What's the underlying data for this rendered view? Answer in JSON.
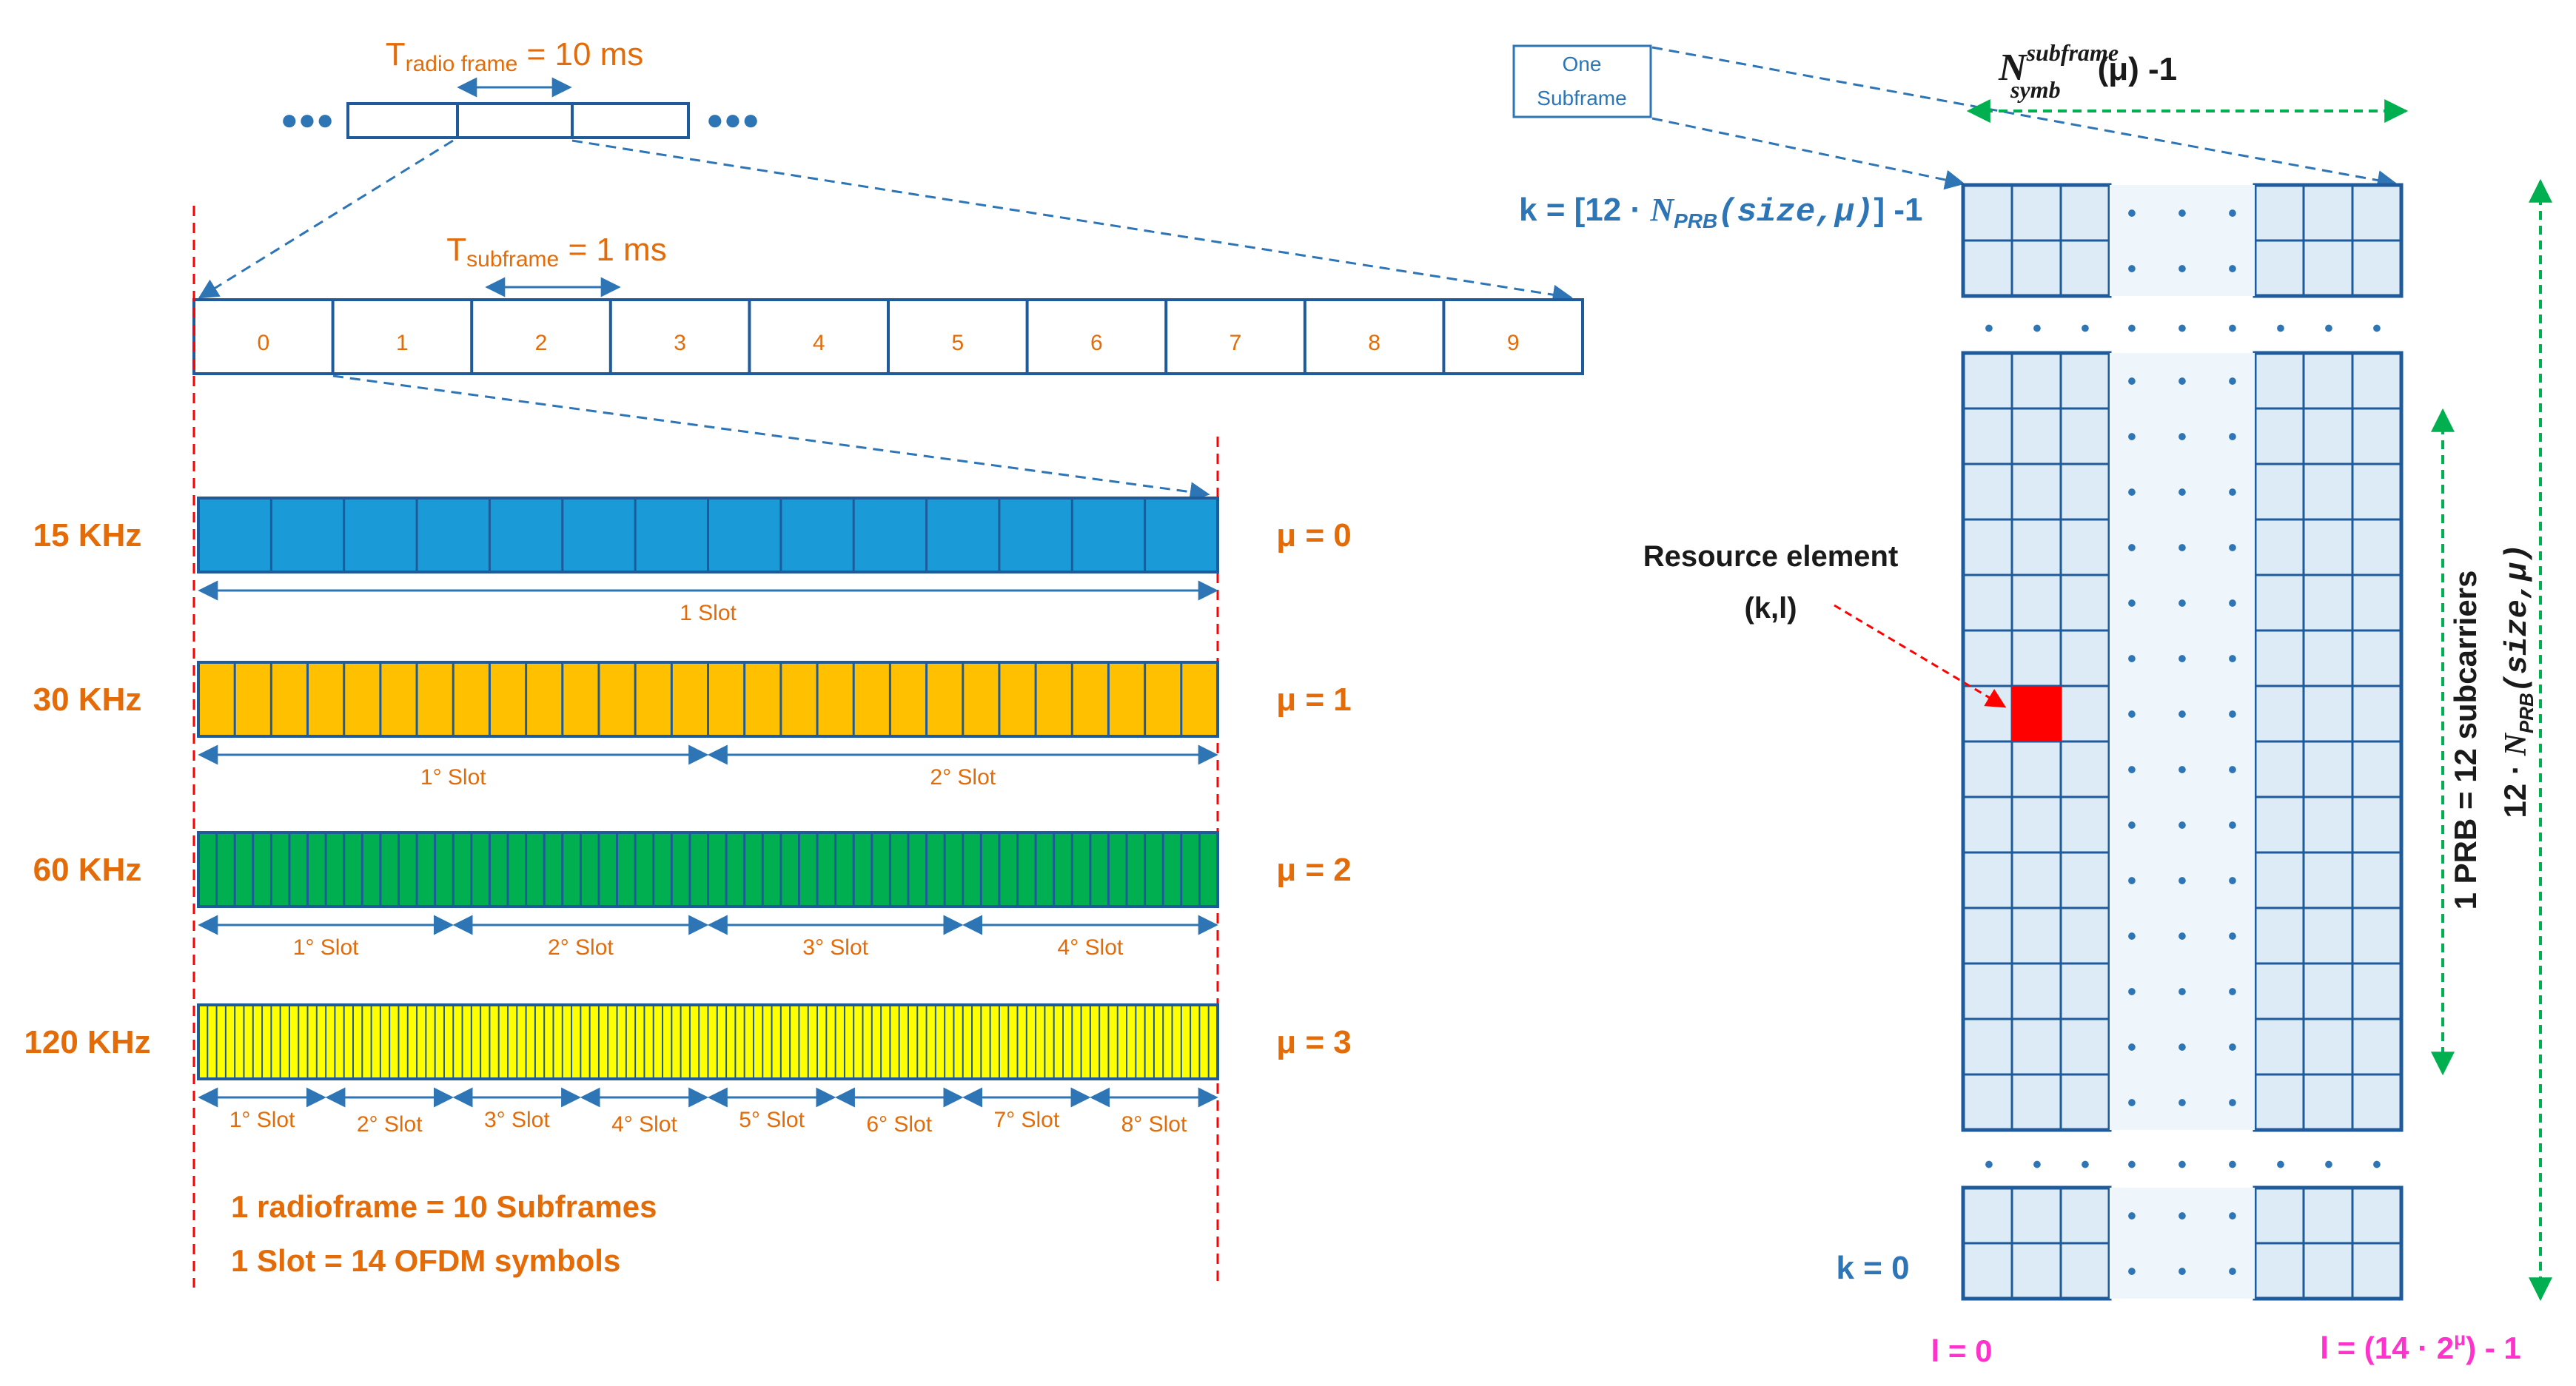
{
  "colors": {
    "orange": "#E36C09",
    "blue": "#2E75B6",
    "dark_blue": "#1F4E79",
    "light_blue_fill": "#DDEBF7",
    "grid_border": "#1F5B9A",
    "red_dash": "#FF0000",
    "green_dash": "#00B050",
    "magenta": "#FF33CC",
    "mu0_fill": "#1A9BD7",
    "mu1_fill": "#FFC000",
    "mu2_fill": "#00B050",
    "mu3_fill": "#FFFF00",
    "resource_element": "#FF0000"
  },
  "radio_frame": {
    "label_prefix": "T",
    "label_sub": "radio frame",
    "label_suffix": " = 10 ms",
    "ellipsis": "●●●"
  },
  "subframe": {
    "label_prefix": "T",
    "label_sub": "subframe",
    "label_suffix": " = 1 ms",
    "indices": [
      "0",
      "1",
      "2",
      "3",
      "4",
      "5",
      "6",
      "7",
      "8",
      "9"
    ]
  },
  "numerologies": [
    {
      "scs": "15 KHz",
      "mu": "μ = 0",
      "symbols": 14,
      "slots": [
        "1 Slot"
      ]
    },
    {
      "scs": "30 KHz",
      "mu": "μ = 1",
      "symbols": 28,
      "slots": [
        "1° Slot",
        "2° Slot"
      ]
    },
    {
      "scs": "60 KHz",
      "mu": "μ = 2",
      "symbols": 56,
      "slots": [
        "1° Slot",
        "2° Slot",
        "3° Slot",
        "4° Slot"
      ]
    },
    {
      "scs": "120 KHz",
      "mu": "μ = 3",
      "symbols": 112,
      "slots": [
        "1° Slot",
        "2° Slot",
        "3° Slot",
        "4° Slot",
        "5° Slot",
        "6° Slot",
        "7° Slot",
        "8° Slot"
      ]
    }
  ],
  "notes": {
    "line1": "1 radioframe = 10 Subframes",
    "line2": "1 Slot = 14 OFDM symbols"
  },
  "resource_grid": {
    "one_subframe": [
      "One",
      "Subframe"
    ],
    "n_symb_base": "N",
    "n_symb_sup": "subframe",
    "n_symb_sub": "symb",
    "n_symb_suffix": "(μ) -1",
    "k_top_prefix": "k = [12 · ",
    "k_top_n": "N",
    "k_top_sub": "PRB",
    "k_top_args": "(size,μ)",
    "k_top_suffix": "] -1",
    "resource_element_label": "Resource element",
    "resource_element_coord": "(k,l)",
    "prb_label": "1 PRB = 12 subcarriers",
    "total_label_prefix": "12 · ",
    "total_label_n": "N",
    "total_label_sub": "PRB",
    "total_label_args": "(size,μ)",
    "k_bottom": "k = 0",
    "l_left": "l = 0",
    "l_right_prefix": "l = (14 · 2",
    "l_right_sup": "μ",
    "l_right_suffix": ") - 1",
    "dots": "•"
  }
}
